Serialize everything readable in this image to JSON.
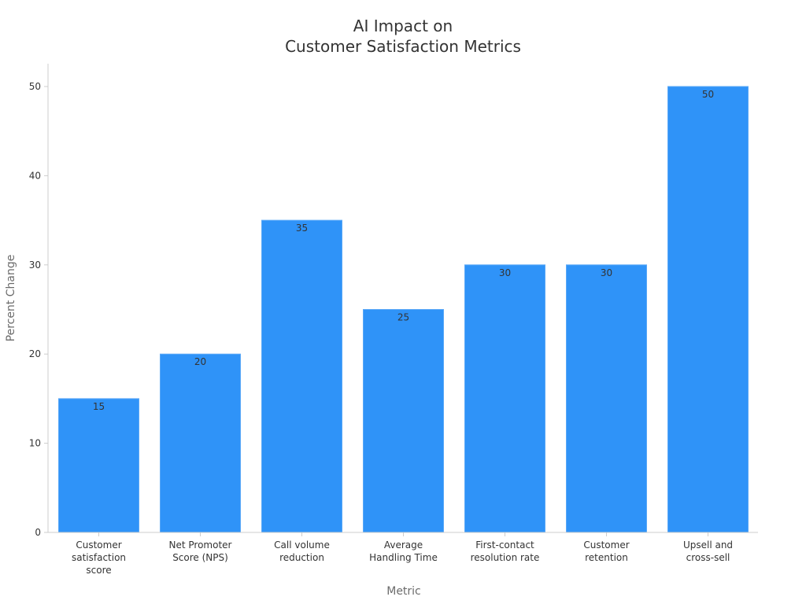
{
  "chart_data": {
    "type": "bar",
    "title_lines": [
      "AI Impact on",
      "Customer Satisfaction Metrics"
    ],
    "xlabel": "Metric",
    "ylabel": "Percent Change",
    "categories": [
      [
        "Customer",
        "satisfaction",
        "score"
      ],
      [
        "Net Promoter",
        "Score (NPS)"
      ],
      [
        "Call volume",
        "reduction"
      ],
      [
        "Average",
        "Handling Time"
      ],
      [
        "First-contact",
        "resolution rate"
      ],
      [
        "Customer",
        "retention"
      ],
      [
        "Upsell and",
        "cross-sell"
      ]
    ],
    "values": [
      15,
      20,
      35,
      25,
      30,
      30,
      50
    ],
    "data_labels": [
      "15",
      "20",
      "35",
      "25",
      "30",
      "30",
      "50"
    ],
    "yticks": [
      0,
      10,
      20,
      30,
      40,
      50
    ],
    "ylim": [
      0,
      52.5
    ],
    "grid": false,
    "legend": "none",
    "colors": {
      "bar": "#2f93f8",
      "bar_edge": "#5aa8f7",
      "axis": "#cccccc",
      "text": "#333333",
      "axis_title": "#6b6b6b"
    }
  }
}
